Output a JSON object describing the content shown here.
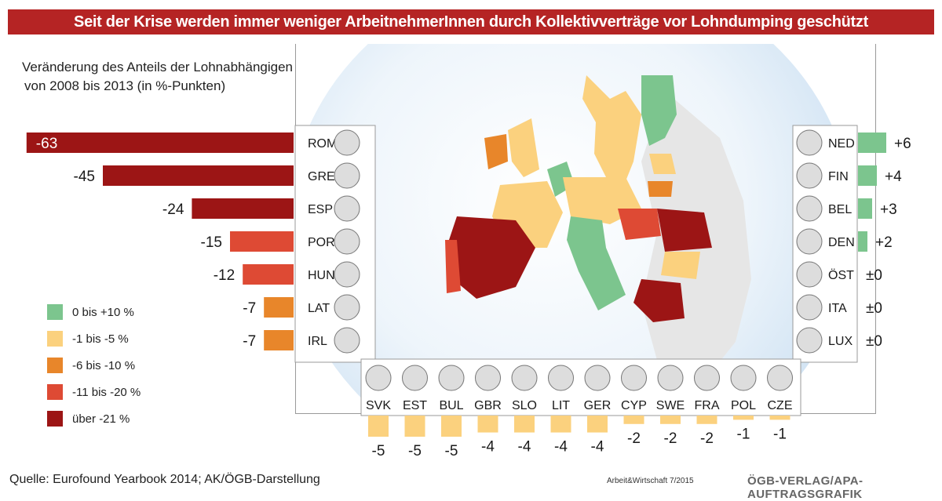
{
  "title": "Seit der Krise werden immer weniger ArbeitnehmerInnen durch Kollektivverträge vor Lohndumping geschützt",
  "subtitle_line1": "Veränderung des Anteils der Lohnabhängigen mit Kollektivverträgen",
  "subtitle_line2": "von 2008 bis 2013 (in %-Punkten)",
  "legend": [
    {
      "label": "0 bis +10 %",
      "color": "#7cc58e"
    },
    {
      "label": "-1 bis -5 %",
      "color": "#fbd17e"
    },
    {
      "label": "-6 bis -10 %",
      "color": "#e8862a"
    },
    {
      "label": "-11 bis -20 %",
      "color": "#de4a34"
    },
    {
      "label": "über -21 %",
      "color": "#9c1515"
    }
  ],
  "source": "Quelle: Eurofound Yearbook 2014; AK/ÖGB-Darstellung",
  "footer_mid": "Arbeit&Wirtschaft 7/2015",
  "footer_right": "ÖGB-VERLAG/APA-AUFTRAGSGRAFIK",
  "chart_data": {
    "type": "bar",
    "left_series": [
      {
        "country": "ROM",
        "value": -63,
        "label": "-63",
        "color": "#9c1515"
      },
      {
        "country": "GRE",
        "value": -45,
        "label": "-45",
        "color": "#9c1515"
      },
      {
        "country": "ESP",
        "value": -24,
        "label": "-24",
        "color": "#9c1515"
      },
      {
        "country": "POR",
        "value": -15,
        "label": "-15",
        "color": "#de4a34"
      },
      {
        "country": "HUN",
        "value": -12,
        "label": "-12",
        "color": "#de4a34"
      },
      {
        "country": "LAT",
        "value": -7,
        "label": "-7",
        "color": "#e8862a"
      },
      {
        "country": "IRL",
        "value": -7,
        "label": "-7",
        "color": "#e8862a"
      }
    ],
    "right_series": [
      {
        "country": "NED",
        "value": 6,
        "label": "+6",
        "color": "#7cc58e"
      },
      {
        "country": "FIN",
        "value": 4,
        "label": "+4",
        "color": "#7cc58e"
      },
      {
        "country": "BEL",
        "value": 3,
        "label": "+3",
        "color": "#7cc58e"
      },
      {
        "country": "DEN",
        "value": 2,
        "label": "+2",
        "color": "#7cc58e"
      },
      {
        "country": "ÖST",
        "value": 0,
        "label": "±0",
        "color": "#7cc58e"
      },
      {
        "country": "ITA",
        "value": 0,
        "label": "±0",
        "color": "#7cc58e"
      },
      {
        "country": "LUX",
        "value": 0,
        "label": "±0",
        "color": "#7cc58e"
      }
    ],
    "bottom_series": [
      {
        "country": "SVK",
        "value": -5,
        "label": "-5",
        "color": "#fbd17e"
      },
      {
        "country": "EST",
        "value": -5,
        "label": "-5",
        "color": "#fbd17e"
      },
      {
        "country": "BUL",
        "value": -5,
        "label": "-5",
        "color": "#fbd17e"
      },
      {
        "country": "GBR",
        "value": -4,
        "label": "-4",
        "color": "#fbd17e"
      },
      {
        "country": "SLO",
        "value": -4,
        "label": "-4",
        "color": "#fbd17e"
      },
      {
        "country": "LIT",
        "value": -4,
        "label": "-4",
        "color": "#fbd17e"
      },
      {
        "country": "GER",
        "value": -4,
        "label": "-4",
        "color": "#fbd17e"
      },
      {
        "country": "CYP",
        "value": -2,
        "label": "-2",
        "color": "#fbd17e"
      },
      {
        "country": "SWE",
        "value": -2,
        "label": "-2",
        "color": "#fbd17e"
      },
      {
        "country": "FRA",
        "value": -2,
        "label": "-2",
        "color": "#fbd17e"
      },
      {
        "country": "POL",
        "value": -1,
        "label": "-1",
        "color": "#fbd17e"
      },
      {
        "country": "CZE",
        "value": -1,
        "label": "-1",
        "color": "#fbd17e"
      }
    ]
  }
}
